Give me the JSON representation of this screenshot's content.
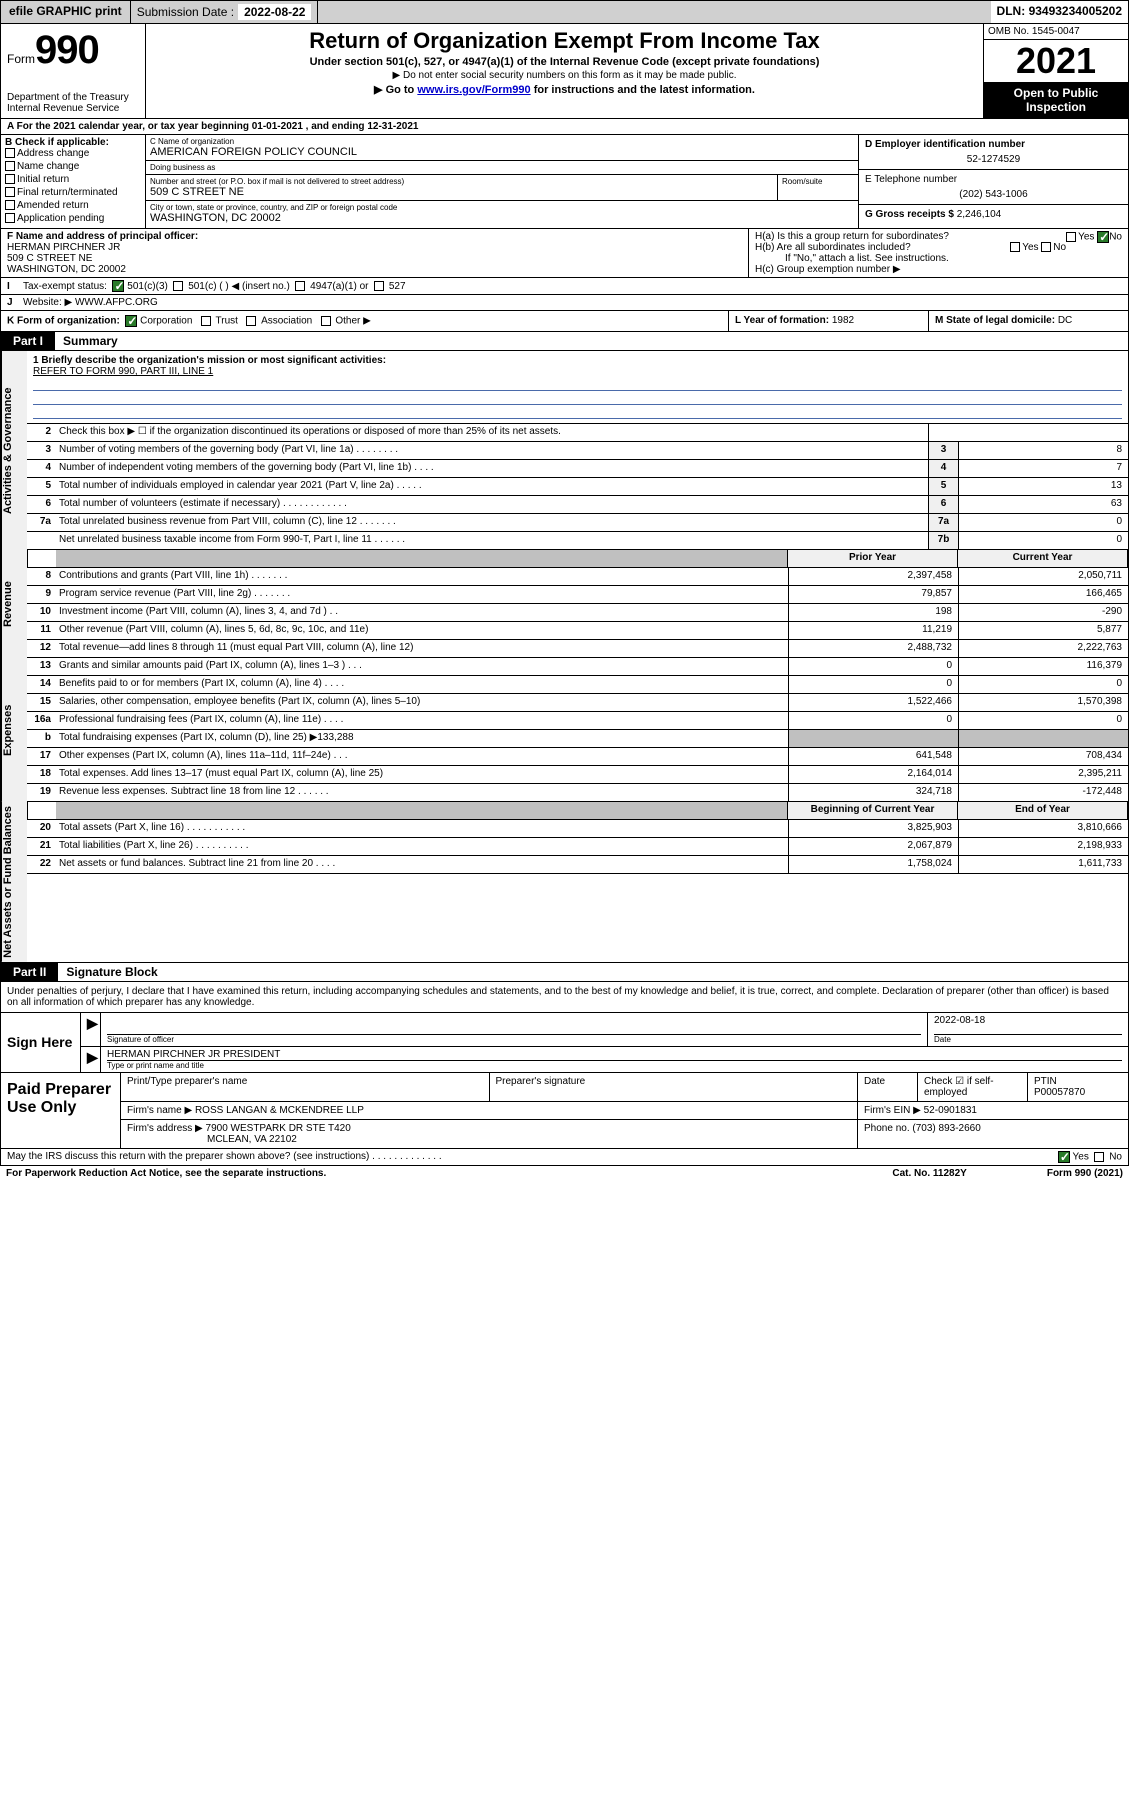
{
  "topbar": {
    "efile": "efile GRAPHIC print",
    "submission_label": "Submission Date :",
    "submission_date": "2022-08-22",
    "dln_label": "DLN:",
    "dln": "93493234005202"
  },
  "header": {
    "form_word": "Form",
    "form_number": "990",
    "dept": "Department of the Treasury Internal Revenue Service",
    "title": "Return of Organization Exempt From Income Tax",
    "sub1": "Under section 501(c), 527, or 4947(a)(1) of the Internal Revenue Code (except private foundations)",
    "sub2": "▶ Do not enter social security numbers on this form as it may be made public.",
    "sub3_prefix": "▶ Go to ",
    "sub3_link": "www.irs.gov/Form990",
    "sub3_suffix": " for instructions and the latest information.",
    "omb": "OMB No. 1545-0047",
    "year": "2021",
    "open_public": "Open to Public Inspection"
  },
  "lineA": "A For the 2021 calendar year, or tax year beginning 01-01-2021 , and ending 12-31-2021",
  "sectionB": {
    "label": "B Check if applicable:",
    "items": [
      "Address change",
      "Name change",
      "Initial return",
      "Final return/terminated",
      "Amended return",
      "Application pending"
    ]
  },
  "sectionC": {
    "name_label": "C Name of organization",
    "name": "AMERICAN FOREIGN POLICY COUNCIL",
    "dba_label": "Doing business as",
    "dba": "",
    "street_label": "Number and street (or P.O. box if mail is not delivered to street address)",
    "room_label": "Room/suite",
    "street": "509 C STREET NE",
    "city_label": "City or town, state or province, country, and ZIP or foreign postal code",
    "city": "WASHINGTON, DC  20002"
  },
  "sectionD": {
    "label": "D Employer identification number",
    "value": "52-1274529"
  },
  "sectionE": {
    "label": "E Telephone number",
    "value": "(202) 543-1006"
  },
  "sectionG": {
    "label": "G Gross receipts $",
    "value": "2,246,104"
  },
  "sectionF": {
    "label": "F Name and address of principal officer:",
    "name": "HERMAN PIRCHNER JR",
    "street": "509 C STREET NE",
    "city": "WASHINGTON, DC  20002"
  },
  "sectionH": {
    "a": "H(a) Is this a group return for subordinates?",
    "a_yes": "Yes",
    "a_no": "No",
    "b": "H(b) Are all subordinates included?",
    "b_note": "If \"No,\" attach a list. See instructions.",
    "c": "H(c) Group exemption number ▶"
  },
  "sectionI": {
    "label": "Tax-exempt status:",
    "opts": [
      "501(c)(3)",
      "501(c) (  ) ◀ (insert no.)",
      "4947(a)(1) or",
      "527"
    ]
  },
  "sectionJ": {
    "label": "Website: ▶",
    "value": "WWW.AFPC.ORG"
  },
  "sectionK": {
    "label": "K Form of organization:",
    "opts": [
      "Corporation",
      "Trust",
      "Association",
      "Other ▶"
    ]
  },
  "sectionL": {
    "label": "L Year of formation:",
    "value": "1982"
  },
  "sectionM": {
    "label": "M State of legal domicile:",
    "value": "DC"
  },
  "part1": {
    "tag": "Part I",
    "title": "Summary"
  },
  "mission": {
    "q": "1 Briefly describe the organization's mission or most significant activities:",
    "a": "REFER TO FORM 990, PART III, LINE 1"
  },
  "gov_rows": [
    {
      "n": "2",
      "d": "Check this box ▶ ☐ if the organization discontinued its operations or disposed of more than 25% of its net assets.",
      "box": "",
      "v": ""
    },
    {
      "n": "3",
      "d": "Number of voting members of the governing body (Part VI, line 1a) . . . . . . . .",
      "box": "3",
      "v": "8"
    },
    {
      "n": "4",
      "d": "Number of independent voting members of the governing body (Part VI, line 1b) . . . .",
      "box": "4",
      "v": "7"
    },
    {
      "n": "5",
      "d": "Total number of individuals employed in calendar year 2021 (Part V, line 2a) . . . . .",
      "box": "5",
      "v": "13"
    },
    {
      "n": "6",
      "d": "Total number of volunteers (estimate if necessary) . . . . . . . . . . . .",
      "box": "6",
      "v": "63"
    },
    {
      "n": "7a",
      "d": "Total unrelated business revenue from Part VIII, column (C), line 12 . . . . . . .",
      "box": "7a",
      "v": "0"
    },
    {
      "n": "",
      "d": "Net unrelated business taxable income from Form 990-T, Part I, line 11 . . . . . .",
      "box": "7b",
      "v": "0"
    }
  ],
  "rev_hdr": {
    "prior": "Prior Year",
    "current": "Current Year"
  },
  "rev_rows": [
    {
      "n": "8",
      "d": "Contributions and grants (Part VIII, line 1h) . . . . . . .",
      "v1": "2,397,458",
      "v2": "2,050,711"
    },
    {
      "n": "9",
      "d": "Program service revenue (Part VIII, line 2g) . . . . . . .",
      "v1": "79,857",
      "v2": "166,465"
    },
    {
      "n": "10",
      "d": "Investment income (Part VIII, column (A), lines 3, 4, and 7d ) . .",
      "v1": "198",
      "v2": "-290"
    },
    {
      "n": "11",
      "d": "Other revenue (Part VIII, column (A), lines 5, 6d, 8c, 9c, 10c, and 11e)",
      "v1": "11,219",
      "v2": "5,877"
    },
    {
      "n": "12",
      "d": "Total revenue—add lines 8 through 11 (must equal Part VIII, column (A), line 12)",
      "v1": "2,488,732",
      "v2": "2,222,763"
    }
  ],
  "exp_rows": [
    {
      "n": "13",
      "d": "Grants and similar amounts paid (Part IX, column (A), lines 1–3 ) . . .",
      "v1": "0",
      "v2": "116,379"
    },
    {
      "n": "14",
      "d": "Benefits paid to or for members (Part IX, column (A), line 4) . . . .",
      "v1": "0",
      "v2": "0"
    },
    {
      "n": "15",
      "d": "Salaries, other compensation, employee benefits (Part IX, column (A), lines 5–10)",
      "v1": "1,522,466",
      "v2": "1,570,398"
    },
    {
      "n": "16a",
      "d": "Professional fundraising fees (Part IX, column (A), line 11e) . . . .",
      "v1": "0",
      "v2": "0"
    },
    {
      "n": "b",
      "d": "Total fundraising expenses (Part IX, column (D), line 25) ▶133,288",
      "v1": "",
      "v2": "",
      "shade": true
    },
    {
      "n": "17",
      "d": "Other expenses (Part IX, column (A), lines 11a–11d, 11f–24e) . . .",
      "v1": "641,548",
      "v2": "708,434"
    },
    {
      "n": "18",
      "d": "Total expenses. Add lines 13–17 (must equal Part IX, column (A), line 25)",
      "v1": "2,164,014",
      "v2": "2,395,211"
    },
    {
      "n": "19",
      "d": "Revenue less expenses. Subtract line 18 from line 12 . . . . . .",
      "v1": "324,718",
      "v2": "-172,448"
    }
  ],
  "net_hdr": {
    "beg": "Beginning of Current Year",
    "end": "End of Year"
  },
  "net_rows": [
    {
      "n": "20",
      "d": "Total assets (Part X, line 16) . . . . . . . . . . .",
      "v1": "3,825,903",
      "v2": "3,810,666"
    },
    {
      "n": "21",
      "d": "Total liabilities (Part X, line 26) . . . . . . . . . .",
      "v1": "2,067,879",
      "v2": "2,198,933"
    },
    {
      "n": "22",
      "d": "Net assets or fund balances. Subtract line 21 from line 20 . . . .",
      "v1": "1,758,024",
      "v2": "1,611,733"
    }
  ],
  "part2": {
    "tag": "Part II",
    "title": "Signature Block"
  },
  "sig": {
    "text": "Under penalties of perjury, I declare that I have examined this return, including accompanying schedules and statements, and to the best of my knowledge and belief, it is true, correct, and complete. Declaration of preparer (other than officer) is based on all information of which preparer has any knowledge.",
    "sign_here": "Sign Here",
    "sig_officer": "Signature of officer",
    "date_label": "Date",
    "date": "2022-08-18",
    "name_title": "HERMAN PIRCHNER JR PRESIDENT",
    "name_label": "Type or print name and title"
  },
  "paid": {
    "label": "Paid Preparer Use Only",
    "h_name": "Print/Type preparer's name",
    "h_sig": "Preparer's signature",
    "h_date": "Date",
    "h_check": "Check ☑ if self-employed",
    "h_ptin": "PTIN",
    "ptin": "P00057870",
    "firm_name_label": "Firm's name ▶",
    "firm_name": "ROSS LANGAN & MCKENDREE LLP",
    "firm_ein_label": "Firm's EIN ▶",
    "firm_ein": "52-0901831",
    "firm_addr_label": "Firm's address ▶",
    "firm_addr1": "7900 WESTPARK DR STE T420",
    "firm_addr2": "MCLEAN, VA  22102",
    "phone_label": "Phone no.",
    "phone": "(703) 893-2660"
  },
  "footer": {
    "discuss": "May the IRS discuss this return with the preparer shown above? (see instructions) . . . . . . . . . . . . .",
    "yes": "Yes",
    "no": "No"
  },
  "last": {
    "pra": "For Paperwork Reduction Act Notice, see the separate instructions.",
    "cat": "Cat. No. 11282Y",
    "form": "Form 990 (2021)"
  }
}
